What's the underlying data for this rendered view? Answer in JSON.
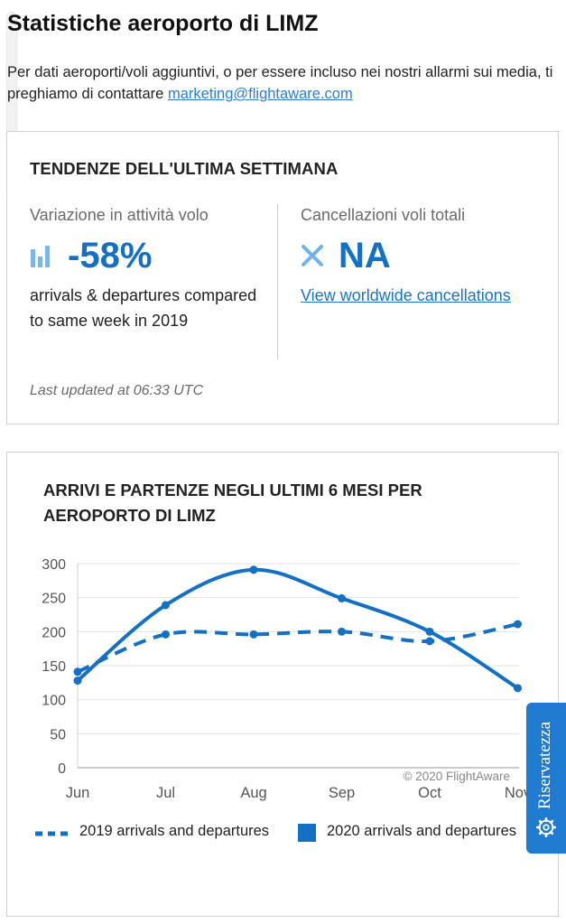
{
  "page": {
    "title": "Statistiche aeroporto di LIMZ",
    "intro_text": "Per dati aeroporti/voli aggiuntivi, o per essere incluso nei nostri allarmi sui media, ti preghiamo di contattare ",
    "contact_email": "marketing@flightaware.com"
  },
  "trends": {
    "title": "TENDENZE DELL'ULTIMA SETTIMANA",
    "activity": {
      "label": "Variazione in attività volo",
      "value": "-58%",
      "description": "arrivals & departures compared to same week in 2019",
      "icon": "bar-chart-icon"
    },
    "cancellations": {
      "label": "Cancellazioni voli totali",
      "value": "NA",
      "link": "View worldwide cancellations",
      "icon": "close-x-icon"
    },
    "last_updated": "Last updated at 06:33 UTC"
  },
  "chart_data": {
    "type": "line",
    "title": "ARRIVI E PARTENZE NEGLI ULTIMI 6 MESI PER AEROPORTO DI LIMZ",
    "categories": [
      "Jun",
      "Jul",
      "Aug",
      "Sep",
      "Oct",
      "Nov"
    ],
    "yticks": [
      0,
      50,
      100,
      150,
      200,
      250,
      300
    ],
    "ylim": [
      0,
      300
    ],
    "grid": true,
    "legend_placement": "bottom",
    "credit": "© 2020 FlightAware",
    "series": [
      {
        "name": "2019 arrivals and departures",
        "values": [
          141,
          196,
          196,
          200,
          186,
          211
        ],
        "style": "dashed",
        "color": "#1470c4"
      },
      {
        "name": "2020 arrivals and departures",
        "values": [
          128,
          239,
          291,
          249,
          200,
          117
        ],
        "style": "solid",
        "color": "#1470c4"
      }
    ]
  },
  "privacy_tab": {
    "label": "Riservatezza",
    "icon": "gear-icon"
  },
  "colors": {
    "accent": "#1470c4",
    "link": "#1a73c9",
    "privacy_tab": "#1f7bd0"
  }
}
